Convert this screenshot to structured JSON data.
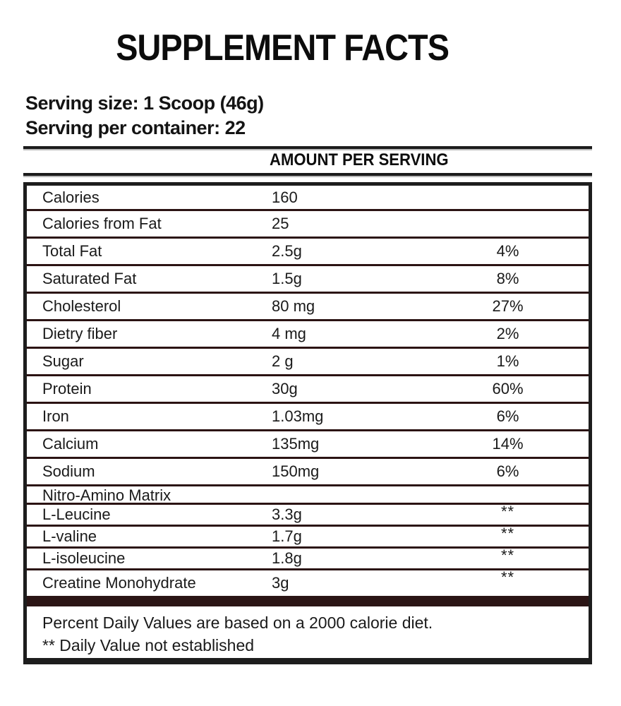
{
  "title": "SUPPLEMENT FACTS",
  "serving": {
    "size_line": "Serving size: 1 Scoop (46g)",
    "container_line": "Serving per container: 22"
  },
  "table": {
    "header": "AMOUNT PER SERVING",
    "rows": [
      {
        "type": "main",
        "label": "Calories",
        "amount": "160",
        "dv": ""
      },
      {
        "type": "main",
        "label": "Calories from Fat",
        "amount": "25",
        "dv": ""
      },
      {
        "type": "main",
        "label": "Total Fat",
        "amount": "2.5g",
        "dv": "4%"
      },
      {
        "type": "main",
        "label": "Saturated Fat",
        "amount": "1.5g",
        "dv": "8%"
      },
      {
        "type": "main",
        "label": "Cholesterol",
        "amount": "80 mg",
        "dv": "27%"
      },
      {
        "type": "main",
        "label": "Dietry fiber",
        "amount": "4 mg",
        "dv": "2%"
      },
      {
        "type": "main",
        "label": "Sugar",
        "amount": "2 g",
        "dv": "1%"
      },
      {
        "type": "main",
        "label": "Protein",
        "amount": "30g",
        "dv": "60%"
      },
      {
        "type": "main",
        "label": "Iron",
        "amount": "1.03mg",
        "dv": "6%"
      },
      {
        "type": "main",
        "label": "Calcium",
        "amount": "135mg",
        "dv": "14%"
      },
      {
        "type": "main",
        "label": "Sodium",
        "amount": "150mg",
        "dv": "6%"
      },
      {
        "type": "section",
        "label": "Nitro-Amino Matrix",
        "amount": "",
        "dv": ""
      },
      {
        "type": "sub",
        "label": "L-Leucine",
        "amount": "3.3g",
        "dv": "**"
      },
      {
        "type": "sub",
        "label": "L-valine",
        "amount": "1.7g",
        "dv": "**"
      },
      {
        "type": "sub",
        "label": "L-isoleucine",
        "amount": "1.8g",
        "dv": "**"
      },
      {
        "type": "sub",
        "label": "Creatine Monohydrate",
        "amount": "3g",
        "dv": "**"
      }
    ]
  },
  "footnotes": [
    "Percent Daily Values are based on a 2000 calorie diet.",
    "** Daily Value not established"
  ],
  "colors": {
    "background": "#ffffff",
    "text": "#161616",
    "outer_border": "#1d1d1d",
    "row_separator": "#2b1313",
    "accent_bar": "#2b1515"
  }
}
